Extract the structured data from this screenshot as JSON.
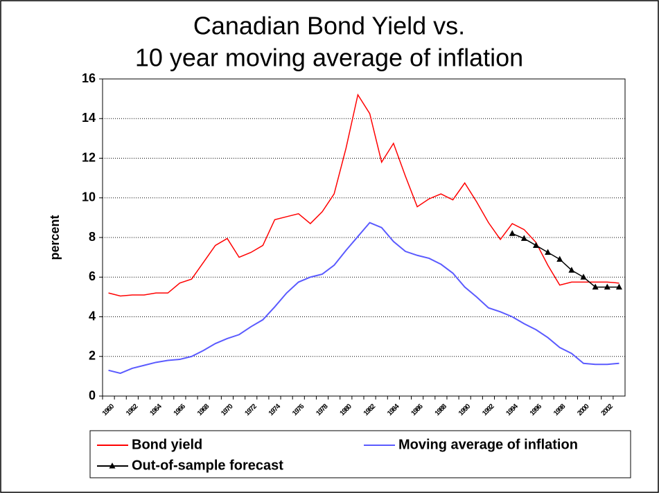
{
  "chart_data": {
    "type": "line",
    "title": [
      "Canadian Bond Yield vs.",
      "10 year moving average of inflation"
    ],
    "y_label": "percent",
    "categories": [
      "1960",
      null,
      "1962",
      null,
      "1964",
      null,
      "1966",
      null,
      "1968",
      null,
      "1970",
      null,
      "1972",
      null,
      "1974",
      null,
      "1976",
      null,
      "1978",
      null,
      "1980",
      null,
      "1982",
      null,
      "1984",
      null,
      "1986",
      null,
      "1988",
      null,
      "1990",
      null,
      "1992",
      null,
      "1994",
      null,
      "1996",
      null,
      "1998",
      null,
      "2000",
      null,
      "2002",
      null
    ],
    "series": [
      {
        "name": "Bond yield",
        "color": "#ff0000",
        "marker": false,
        "values": [
          5.2,
          5.05,
          5.1,
          5.1,
          5.2,
          5.2,
          5.7,
          5.9,
          6.75,
          7.6,
          7.95,
          7.0,
          7.25,
          7.6,
          8.9,
          9.05,
          9.2,
          8.7,
          9.3,
          10.2,
          12.5,
          15.2,
          14.25,
          11.8,
          12.75,
          11.1,
          9.55,
          9.95,
          10.2,
          9.9,
          10.75,
          9.8,
          8.75,
          7.9,
          8.7,
          8.4,
          7.75,
          6.6,
          5.6,
          5.75,
          5.75,
          5.75,
          5.75,
          5.7
        ]
      },
      {
        "name": "Moving average of inflation",
        "color": "#5a5aff",
        "marker": false,
        "values": [
          1.3,
          1.15,
          1.4,
          1.55,
          1.7,
          1.8,
          1.85,
          2.0,
          2.3,
          2.65,
          2.9,
          3.1,
          3.5,
          3.85,
          4.5,
          5.2,
          5.75,
          6.0,
          6.15,
          6.6,
          7.35,
          8.05,
          8.75,
          8.5,
          7.8,
          7.3,
          7.1,
          6.95,
          6.65,
          6.2,
          5.5,
          5.0,
          4.45,
          4.25,
          4.0,
          3.65,
          3.35,
          2.95,
          2.45,
          2.15,
          1.65,
          1.6,
          1.6,
          1.65
        ]
      },
      {
        "name": "Out-of-sample forecast",
        "color": "#000000",
        "marker": true,
        "values": [
          null,
          null,
          null,
          null,
          null,
          null,
          null,
          null,
          null,
          null,
          null,
          null,
          null,
          null,
          null,
          null,
          null,
          null,
          null,
          null,
          null,
          null,
          null,
          null,
          null,
          null,
          null,
          null,
          null,
          null,
          null,
          null,
          null,
          null,
          8.2,
          7.95,
          7.6,
          7.25,
          6.9,
          6.35,
          6.0,
          5.5,
          5.5,
          5.5
        ]
      }
    ],
    "ylim": [
      0,
      16
    ],
    "yticks": [
      0,
      2,
      4,
      6,
      8,
      10,
      12,
      14,
      16
    ],
    "grid": true
  }
}
